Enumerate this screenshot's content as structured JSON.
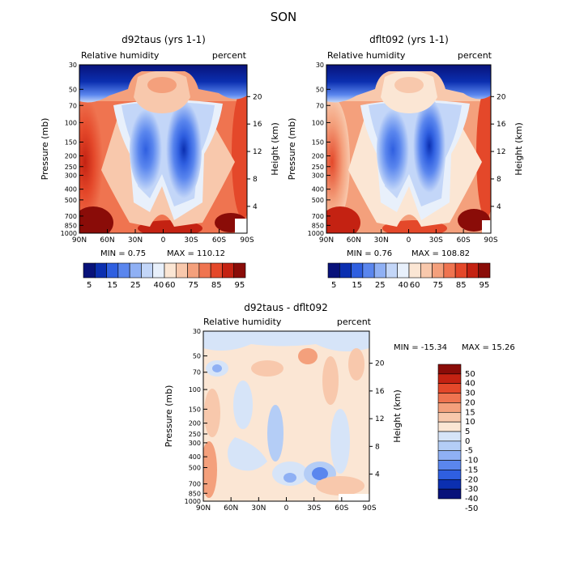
{
  "page_title": "SON",
  "chart_data": [
    {
      "type": "heatmap",
      "title": "d92taus (yrs 1-1)",
      "subtitle_left": "Relative humidity",
      "subtitle_right": "percent",
      "xlabel": "",
      "ylabel": "Pressure (mb)",
      "ylabel_right": "Height (km)",
      "x_ticks": [
        "90N",
        "60N",
        "30N",
        "0",
        "30S",
        "60S",
        "90S"
      ],
      "y_ticks": [
        "30",
        "50",
        "70",
        "100",
        "150",
        "200",
        "250",
        "300",
        "400",
        "500",
        "700",
        "850",
        "1000"
      ],
      "y_ticks_right": [
        "20",
        "16",
        "12",
        "8",
        "4"
      ],
      "min_label": "MIN =    0.75",
      "max_label": "MAX = 110.12",
      "colorbar_levels": [
        "5",
        "15",
        "25",
        "40",
        "60",
        "75",
        "85",
        "95"
      ]
    },
    {
      "type": "heatmap",
      "title": "dflt092 (yrs 1-1)",
      "subtitle_left": "Relative humidity",
      "subtitle_right": "percent",
      "xlabel": "",
      "ylabel": "Pressure (mb)",
      "ylabel_right": "Height (km)",
      "x_ticks": [
        "90N",
        "60N",
        "30N",
        "0",
        "30S",
        "60S",
        "90S"
      ],
      "y_ticks": [
        "30",
        "50",
        "70",
        "100",
        "150",
        "200",
        "250",
        "300",
        "400",
        "500",
        "700",
        "850",
        "1000"
      ],
      "y_ticks_right": [
        "20",
        "16",
        "12",
        "8",
        "4"
      ],
      "min_label": "MIN =    0.76",
      "max_label": "MAX = 108.82",
      "colorbar_levels": [
        "5",
        "15",
        "25",
        "40",
        "60",
        "75",
        "85",
        "95"
      ]
    },
    {
      "type": "heatmap",
      "title": "d92taus - dflt092",
      "subtitle_left": "Relative humidity",
      "subtitle_right": "percent",
      "xlabel": "",
      "ylabel": "Pressure (mb)",
      "ylabel_right": "Height (km)",
      "x_ticks": [
        "90N",
        "60N",
        "30N",
        "0",
        "30S",
        "60S",
        "90S"
      ],
      "y_ticks": [
        "30",
        "50",
        "70",
        "100",
        "150",
        "200",
        "250",
        "300",
        "400",
        "500",
        "700",
        "850",
        "1000"
      ],
      "y_ticks_right": [
        "20",
        "16",
        "12",
        "8",
        "4"
      ],
      "min_label": "MIN = -15.34",
      "max_label": "MAX =  15.26",
      "colorbar_levels": [
        "50",
        "40",
        "30",
        "20",
        "15",
        "10",
        "5",
        "0",
        "-5",
        "-10",
        "-15",
        "-20",
        "-30",
        "-40",
        "-50"
      ]
    }
  ],
  "colors": {
    "abs_scale": [
      "#08127a",
      "#0b2fb0",
      "#2f5fe0",
      "#5a86ee",
      "#8fb0f4",
      "#c3d6f8",
      "#e8f0fb",
      "#fbe6d4",
      "#f8c8ac",
      "#f4a07c",
      "#ef7450",
      "#e4482a",
      "#c42212",
      "#8a0c08"
    ],
    "diff_scale": [
      "#8a0c08",
      "#c42212",
      "#e4482a",
      "#ef7450",
      "#f4a07c",
      "#f8c8ac",
      "#fbe6d4",
      "#d6e4f8",
      "#b4cdf6",
      "#8fb0f4",
      "#5a86ee",
      "#2f5fe0",
      "#0b2fb0",
      "#08127a"
    ]
  }
}
